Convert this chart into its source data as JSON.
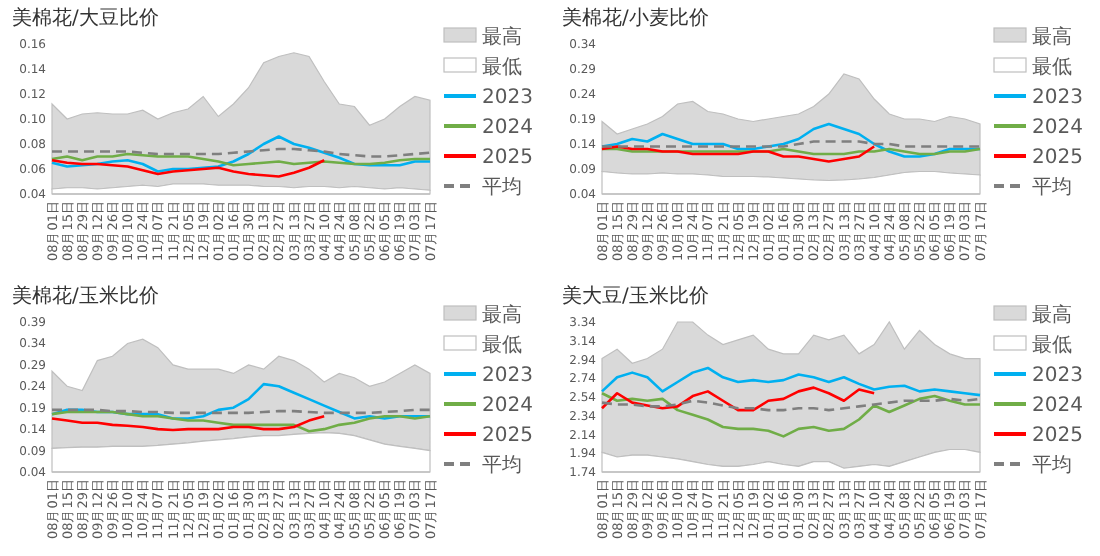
{
  "chart_data": [
    {
      "type": "line",
      "title": "美棉花/大豆比价",
      "legend": "right",
      "categories": [
        "08月01日",
        "08月15日",
        "08月29日",
        "09月12日",
        "09月26日",
        "10月10日",
        "10月24日",
        "11月07日",
        "11月21日",
        "12月05日",
        "12月19日",
        "01月02日",
        "01月16日",
        "01月30日",
        "02月13日",
        "02月27日",
        "03月13日",
        "03月27日",
        "04月10日",
        "04月24日",
        "05月08日",
        "05月22日",
        "06月05日",
        "06月19日",
        "07月03日",
        "07月17日"
      ],
      "ylim": [
        0.04,
        0.16
      ],
      "yticks": [
        0.04,
        0.06,
        0.08,
        {
          "value": 0.1,
          "label": "0.10"
        },
        0.12,
        0.14,
        0.16
      ],
      "series": [
        {
          "name": "最高",
          "type": "area",
          "color": "#d9d9d9",
          "values": [
            0.112,
            0.1,
            0.104,
            0.105,
            0.104,
            0.104,
            0.107,
            0.1,
            0.105,
            0.108,
            0.118,
            0.102,
            0.112,
            0.125,
            0.145,
            0.15,
            0.153,
            0.15,
            0.13,
            0.112,
            0.11,
            0.095,
            0.1,
            0.11,
            0.118,
            0.115
          ]
        },
        {
          "name": "最低",
          "type": "area",
          "color": "#ffffff",
          "values": [
            0.044,
            0.045,
            0.045,
            0.044,
            0.045,
            0.046,
            0.047,
            0.046,
            0.048,
            0.048,
            0.048,
            0.047,
            0.047,
            0.047,
            0.046,
            0.046,
            0.045,
            0.046,
            0.046,
            0.045,
            0.046,
            0.045,
            0.044,
            0.045,
            0.044,
            0.043
          ]
        },
        {
          "name": "2023",
          "type": "line",
          "color": "#00b0f0",
          "values": [
            0.065,
            0.062,
            0.063,
            0.064,
            0.066,
            0.067,
            0.064,
            0.058,
            0.06,
            0.06,
            0.061,
            0.062,
            0.066,
            0.072,
            0.08,
            0.086,
            0.08,
            0.077,
            0.073,
            0.069,
            0.064,
            0.063,
            0.063,
            0.063,
            0.066,
            0.066
          ]
        },
        {
          "name": "2024",
          "type": "line",
          "color": "#70ad47",
          "values": [
            0.068,
            0.07,
            0.067,
            0.07,
            0.07,
            0.072,
            0.071,
            0.07,
            0.07,
            0.07,
            0.068,
            0.066,
            0.063,
            0.064,
            0.065,
            0.066,
            0.064,
            0.065,
            0.066,
            0.065,
            0.064,
            0.064,
            0.065,
            0.067,
            0.068,
            0.068
          ]
        },
        {
          "name": "2025",
          "type": "line",
          "color": "#ff0000",
          "values": [
            0.067,
            0.065,
            0.064,
            0.064,
            0.063,
            0.062,
            0.059,
            0.056,
            0.058,
            0.059,
            0.06,
            0.061,
            0.058,
            0.056,
            0.055,
            0.054,
            0.057,
            0.061,
            0.067,
            null,
            null,
            null,
            null,
            null,
            null,
            null
          ]
        },
        {
          "name": "平均",
          "type": "line",
          "color": "#7f7f7f",
          "line_style": "dashed",
          "values": [
            0.074,
            0.074,
            0.074,
            0.074,
            0.074,
            0.074,
            0.073,
            0.072,
            0.072,
            0.072,
            0.072,
            0.072,
            0.073,
            0.074,
            0.075,
            0.076,
            0.076,
            0.075,
            0.074,
            0.072,
            0.071,
            0.07,
            0.07,
            0.071,
            0.072,
            0.073
          ]
        }
      ]
    },
    {
      "type": "line",
      "title": "美棉花/小麦比价",
      "legend": "right",
      "categories": [
        "08月01日",
        "08月15日",
        "08月29日",
        "09月12日",
        "09月26日",
        "10月10日",
        "10月24日",
        "11月07日",
        "11月21日",
        "12月05日",
        "12月19日",
        "01月02日",
        "01月16日",
        "01月30日",
        "02月13日",
        "02月27日",
        "03月13日",
        "03月27日",
        "04月10日",
        "04月24日",
        "05月08日",
        "05月22日",
        "06月05日",
        "06月19日",
        "07月03日",
        "07月17日"
      ],
      "ylim": [
        0.04,
        0.34
      ],
      "yticks": [
        0.04,
        0.09,
        0.14,
        0.19,
        0.24,
        0.29,
        0.34
      ],
      "series": [
        {
          "name": "最高",
          "type": "area",
          "color": "#d9d9d9",
          "values": [
            0.185,
            0.16,
            0.17,
            0.18,
            0.195,
            0.22,
            0.225,
            0.205,
            0.2,
            0.19,
            0.185,
            0.19,
            0.195,
            0.2,
            0.215,
            0.24,
            0.28,
            0.27,
            0.23,
            0.2,
            0.19,
            0.19,
            0.185,
            0.195,
            0.19,
            0.18
          ]
        },
        {
          "name": "最低",
          "type": "area",
          "color": "#ffffff",
          "values": [
            0.085,
            0.082,
            0.08,
            0.08,
            0.082,
            0.08,
            0.08,
            0.078,
            0.075,
            0.075,
            0.075,
            0.074,
            0.072,
            0.07,
            0.068,
            0.067,
            0.068,
            0.07,
            0.073,
            0.078,
            0.083,
            0.085,
            0.085,
            0.082,
            0.08,
            0.078
          ]
        },
        {
          "name": "2023",
          "type": "line",
          "color": "#00b0f0",
          "values": [
            0.135,
            0.14,
            0.15,
            0.145,
            0.16,
            0.15,
            0.14,
            0.14,
            0.14,
            0.13,
            0.13,
            0.135,
            0.14,
            0.15,
            0.17,
            0.18,
            0.17,
            0.16,
            0.14,
            0.125,
            0.115,
            0.115,
            0.12,
            0.13,
            0.13,
            0.13
          ]
        },
        {
          "name": "2024",
          "type": "line",
          "color": "#70ad47",
          "values": [
            0.13,
            0.13,
            0.125,
            0.125,
            0.125,
            0.125,
            0.125,
            0.125,
            0.125,
            0.125,
            0.125,
            0.125,
            0.13,
            0.125,
            0.12,
            0.12,
            0.12,
            0.125,
            0.125,
            0.13,
            0.125,
            0.12,
            0.12,
            0.125,
            0.125,
            0.13
          ]
        },
        {
          "name": "2025",
          "type": "line",
          "color": "#ff0000",
          "values": [
            0.13,
            0.135,
            0.13,
            0.13,
            0.125,
            0.125,
            0.12,
            0.12,
            0.12,
            0.12,
            0.125,
            0.125,
            0.115,
            0.115,
            0.11,
            0.105,
            0.11,
            0.115,
            0.135,
            null,
            null,
            null,
            null,
            null,
            null,
            null
          ]
        },
        {
          "name": "平均",
          "type": "line",
          "color": "#7f7f7f",
          "line_style": "dashed",
          "values": [
            0.135,
            0.135,
            0.135,
            0.135,
            0.135,
            0.135,
            0.135,
            0.135,
            0.135,
            0.135,
            0.135,
            0.135,
            0.135,
            0.14,
            0.145,
            0.145,
            0.145,
            0.145,
            0.14,
            0.14,
            0.135,
            0.135,
            0.135,
            0.135,
            0.135,
            0.135
          ]
        }
      ]
    },
    {
      "type": "line",
      "title": "美棉花/玉米比价",
      "legend": "right",
      "categories": [
        "08月01日",
        "08月15日",
        "08月29日",
        "09月12日",
        "09月26日",
        "10月10日",
        "10月24日",
        "11月07日",
        "11月21日",
        "12月05日",
        "12月19日",
        "01月02日",
        "01月16日",
        "01月30日",
        "02月13日",
        "02月27日",
        "03月13日",
        "03月27日",
        "04月10日",
        "04月24日",
        "05月08日",
        "05月22日",
        "06月05日",
        "06月19日",
        "07月03日",
        "07月17日"
      ],
      "ylim": [
        0.04,
        0.39
      ],
      "yticks": [
        0.04,
        0.09,
        0.14,
        0.19,
        0.24,
        0.29,
        0.34,
        0.39
      ],
      "series": [
        {
          "name": "最高",
          "type": "area",
          "color": "#d9d9d9",
          "values": [
            0.275,
            0.24,
            0.23,
            0.3,
            0.31,
            0.34,
            0.35,
            0.33,
            0.29,
            0.28,
            0.28,
            0.28,
            0.27,
            0.29,
            0.28,
            0.31,
            0.3,
            0.28,
            0.25,
            0.27,
            0.26,
            0.24,
            0.25,
            0.27,
            0.29,
            0.27
          ]
        },
        {
          "name": "最低",
          "type": "area",
          "color": "#ffffff",
          "values": [
            0.095,
            0.097,
            0.098,
            0.098,
            0.1,
            0.1,
            0.1,
            0.102,
            0.105,
            0.108,
            0.112,
            0.115,
            0.118,
            0.122,
            0.125,
            0.125,
            0.128,
            0.13,
            0.132,
            0.13,
            0.125,
            0.115,
            0.105,
            0.1,
            0.095,
            0.09
          ]
        },
        {
          "name": "2023",
          "type": "line",
          "color": "#00b0f0",
          "values": [
            0.175,
            0.185,
            0.185,
            0.18,
            0.18,
            0.175,
            0.175,
            0.175,
            0.165,
            0.165,
            0.17,
            0.185,
            0.19,
            0.21,
            0.245,
            0.24,
            0.225,
            0.21,
            0.195,
            0.18,
            0.165,
            0.17,
            0.165,
            0.17,
            0.17,
            0.17
          ]
        },
        {
          "name": "2024",
          "type": "line",
          "color": "#70ad47",
          "values": [
            0.175,
            0.18,
            0.18,
            0.18,
            0.18,
            0.175,
            0.17,
            0.17,
            0.165,
            0.16,
            0.16,
            0.155,
            0.15,
            0.15,
            0.15,
            0.15,
            0.15,
            0.135,
            0.14,
            0.15,
            0.155,
            0.165,
            0.17,
            0.17,
            0.165,
            0.17
          ]
        },
        {
          "name": "2025",
          "type": "line",
          "color": "#ff0000",
          "values": [
            0.165,
            0.16,
            0.155,
            0.155,
            0.15,
            0.148,
            0.145,
            0.14,
            0.138,
            0.14,
            0.14,
            0.14,
            0.145,
            0.145,
            0.14,
            0.14,
            0.145,
            0.16,
            0.17,
            null,
            null,
            null,
            null,
            null,
            null,
            null
          ]
        },
        {
          "name": "平均",
          "type": "line",
          "color": "#7f7f7f",
          "line_style": "dashed",
          "values": [
            0.185,
            0.185,
            0.185,
            0.185,
            0.182,
            0.182,
            0.18,
            0.18,
            0.178,
            0.178,
            0.178,
            0.178,
            0.178,
            0.178,
            0.18,
            0.182,
            0.182,
            0.18,
            0.178,
            0.178,
            0.178,
            0.178,
            0.18,
            0.182,
            0.185,
            0.185
          ]
        }
      ]
    },
    {
      "type": "line",
      "title": "美大豆/玉米比价",
      "legend": "right",
      "categories": [
        "08月01日",
        "08月15日",
        "08月29日",
        "09月12日",
        "09月26日",
        "10月10日",
        "10月24日",
        "11月07日",
        "11月21日",
        "12月05日",
        "12月19日",
        "01月02日",
        "01月16日",
        "01月30日",
        "02月13日",
        "02月27日",
        "03月13日",
        "03月27日",
        "04月10日",
        "04月24日",
        "05月08日",
        "05月22日",
        "06月05日",
        "06月19日",
        "07月03日",
        "07月17日"
      ],
      "ylim": [
        1.74,
        3.34
      ],
      "yticks": [
        1.74,
        1.94,
        2.14,
        2.34,
        2.54,
        2.74,
        2.94,
        3.14,
        3.34
      ],
      "series": [
        {
          "name": "最高",
          "type": "area",
          "color": "#d9d9d9",
          "values": [
            2.95,
            3.05,
            2.9,
            2.95,
            3.05,
            3.34,
            3.34,
            3.2,
            3.1,
            3.15,
            3.2,
            3.05,
            3.0,
            3.0,
            3.2,
            3.15,
            3.2,
            3.0,
            3.1,
            3.34,
            3.05,
            3.25,
            3.1,
            3.0,
            2.95,
            2.95
          ]
        },
        {
          "name": "最低",
          "type": "area",
          "color": "#ffffff",
          "values": [
            1.95,
            1.9,
            1.92,
            1.92,
            1.9,
            1.88,
            1.85,
            1.82,
            1.8,
            1.8,
            1.82,
            1.85,
            1.82,
            1.8,
            1.85,
            1.85,
            1.78,
            1.8,
            1.82,
            1.8,
            1.85,
            1.9,
            1.95,
            1.98,
            1.98,
            1.95
          ]
        },
        {
          "name": "2023",
          "type": "line",
          "color": "#00b0f0",
          "values": [
            2.6,
            2.75,
            2.8,
            2.75,
            2.6,
            2.7,
            2.8,
            2.85,
            2.75,
            2.7,
            2.72,
            2.7,
            2.72,
            2.78,
            2.75,
            2.7,
            2.75,
            2.68,
            2.62,
            2.65,
            2.66,
            2.6,
            2.62,
            2.6,
            2.58,
            2.56
          ]
        },
        {
          "name": "2024",
          "type": "line",
          "color": "#70ad47",
          "values": [
            2.58,
            2.5,
            2.52,
            2.5,
            2.52,
            2.4,
            2.35,
            2.3,
            2.22,
            2.2,
            2.2,
            2.18,
            2.12,
            2.2,
            2.22,
            2.18,
            2.2,
            2.3,
            2.45,
            2.38,
            2.45,
            2.52,
            2.55,
            2.5,
            2.46,
            2.46
          ]
        },
        {
          "name": "2025",
          "type": "line",
          "color": "#ff0000",
          "values": [
            2.42,
            2.58,
            2.48,
            2.45,
            2.42,
            2.44,
            2.55,
            2.6,
            2.5,
            2.4,
            2.4,
            2.5,
            2.52,
            2.6,
            2.64,
            2.58,
            2.5,
            2.62,
            2.58,
            null,
            null,
            null,
            null,
            null,
            null,
            null
          ]
        },
        {
          "name": "平均",
          "type": "line",
          "color": "#7f7f7f",
          "line_style": "dashed",
          "values": [
            2.48,
            2.46,
            2.46,
            2.44,
            2.44,
            2.46,
            2.5,
            2.48,
            2.45,
            2.42,
            2.42,
            2.4,
            2.4,
            2.42,
            2.42,
            2.4,
            2.42,
            2.44,
            2.46,
            2.48,
            2.5,
            2.5,
            2.5,
            2.52,
            2.5,
            2.52
          ]
        }
      ]
    }
  ]
}
